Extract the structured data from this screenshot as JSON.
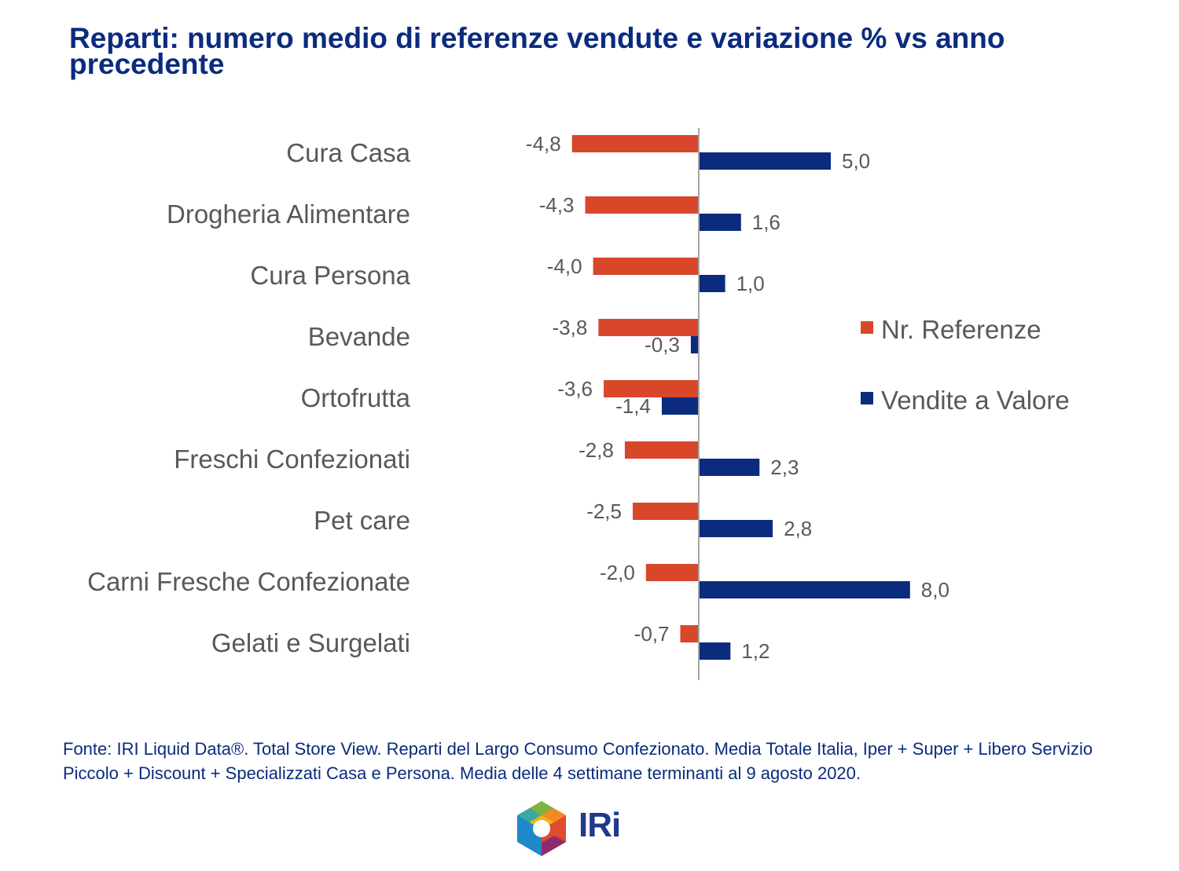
{
  "title": "Reparti: numero medio di referenze vendute e variazione % vs anno precedente",
  "footer": "Fonte: IRI Liquid Data®. Total Store View. Reparti del Largo Consumo Confezionato. Media Totale Italia, Iper + Super + Libero Servizio Piccolo + Discount + Specializzati Casa e Persona. Media delle 4 settimane terminanti al 9 agosto 2020.",
  "logo": {
    "text": "IRi"
  },
  "colors": {
    "title": "#0b2b7e",
    "referenze": "#d9472b",
    "vendite": "#0b2b7e",
    "text": "#595959"
  },
  "chart_data": {
    "type": "bar",
    "orientation": "horizontal",
    "categories": [
      "Cura Casa",
      "Drogheria Alimentare",
      "Cura Persona",
      "Bevande",
      "Ortofrutta",
      "Freschi Confezionati",
      "Pet care",
      "Carni Fresche Confezionate",
      "Gelati e Surgelati"
    ],
    "series": [
      {
        "name": "Nr. Referenze",
        "values": [
          -4.8,
          -4.3,
          -4.0,
          -3.8,
          -3.6,
          -2.8,
          -2.5,
          -2.0,
          -0.7
        ],
        "labels": [
          "-4,8",
          "-4,3",
          "-4,0",
          "-3,8",
          "-3,6",
          "-2,8",
          "-2,5",
          "-2,0",
          "-0,7"
        ]
      },
      {
        "name": "Vendite a Valore",
        "values": [
          5.0,
          1.6,
          1.0,
          -0.3,
          -1.4,
          2.3,
          2.8,
          8.0,
          1.2
        ],
        "labels": [
          "5,0",
          "1,6",
          "1,0",
          "-0,3",
          "-1,4",
          "2,3",
          "2,8",
          "8,0",
          "1,2"
        ]
      }
    ],
    "legend_position": "right",
    "grid": false
  }
}
